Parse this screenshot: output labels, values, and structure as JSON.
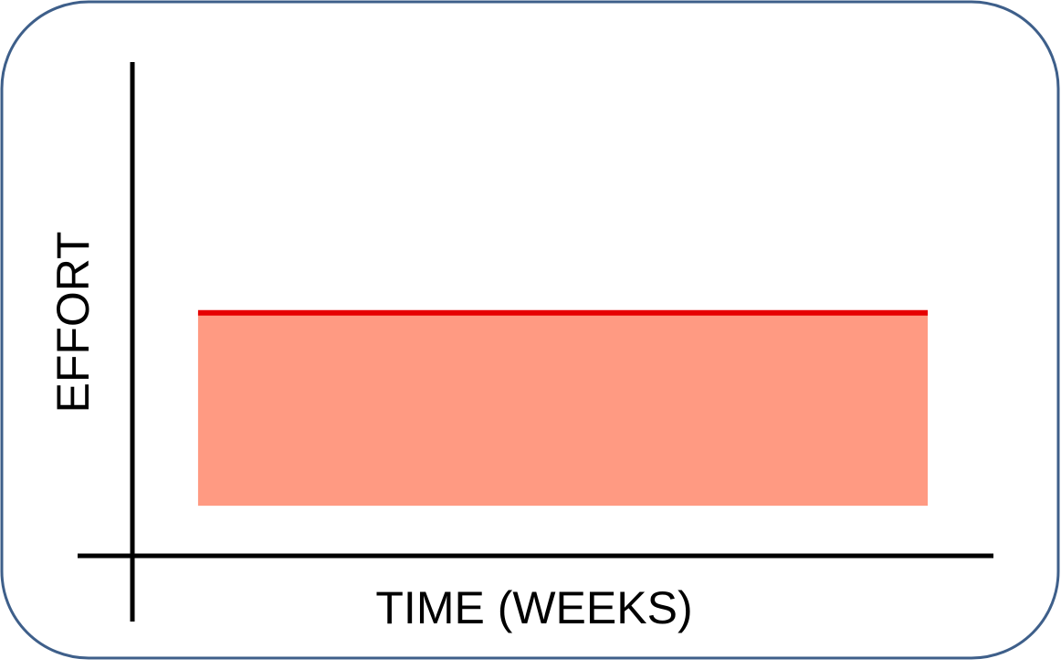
{
  "chart_data": {
    "type": "area",
    "title": "",
    "xlabel": "TIME (WEEKS)",
    "ylabel": "EFFORT",
    "x": [
      0,
      1
    ],
    "series": [
      {
        "values": [
          0.5,
          0.5
        ]
      }
    ],
    "xlim": [
      -0.09,
      1.09
    ],
    "ylim": [
      -0.3,
      1.15
    ],
    "grid": false,
    "legend": "none",
    "colors": {
      "line": "#e60000",
      "fill": "#ff9a82",
      "axis": "#000000",
      "border": "#3e5f8a"
    }
  }
}
